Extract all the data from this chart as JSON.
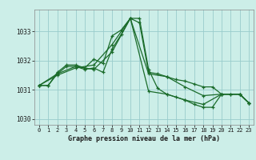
{
  "background_color": "#cceee8",
  "grid_color": "#99cccc",
  "line_color": "#1a6b2a",
  "marker": "+",
  "xlabel": "Graphe pression niveau de la mer (hPa)",
  "ylim": [
    1029.8,
    1033.75
  ],
  "xlim": [
    -0.5,
    23.5
  ],
  "yticks": [
    1030,
    1031,
    1032,
    1033
  ],
  "xticks": [
    0,
    1,
    2,
    3,
    4,
    5,
    6,
    7,
    8,
    9,
    10,
    11,
    12,
    13,
    14,
    15,
    16,
    17,
    18,
    19,
    20,
    21,
    22,
    23
  ],
  "series": [
    {
      "x": [
        0,
        1,
        2,
        3,
        4,
        5,
        6,
        7,
        8,
        9,
        10,
        11,
        12,
        13,
        14,
        15,
        16,
        17,
        18,
        19,
        20,
        21,
        22,
        23
      ],
      "y": [
        1031.15,
        1031.15,
        1031.6,
        1031.85,
        1031.85,
        1031.75,
        1032.05,
        1031.9,
        1032.85,
        1033.05,
        1033.45,
        1033.3,
        1031.6,
        1031.55,
        1031.45,
        1031.35,
        1031.3,
        1031.2,
        1031.1,
        1031.1,
        1030.85,
        1030.85,
        1030.85,
        1030.55
      ]
    },
    {
      "x": [
        0,
        1,
        2,
        3,
        4,
        5,
        6,
        7,
        8,
        9,
        10,
        11,
        12,
        13,
        14,
        15,
        16,
        17,
        18,
        19,
        20,
        21,
        22,
        23
      ],
      "y": [
        1031.15,
        1031.15,
        1031.55,
        1031.8,
        1031.8,
        1031.7,
        1031.75,
        1031.6,
        1032.4,
        1032.9,
        1033.45,
        1033.45,
        1031.7,
        1031.05,
        1030.85,
        1030.75,
        1030.65,
        1030.5,
        1030.4,
        1030.4,
        1030.85,
        1030.85,
        1030.85,
        1030.55
      ]
    },
    {
      "x": [
        0,
        2,
        4,
        6,
        8,
        10,
        12,
        14,
        16,
        18,
        20,
        22,
        23
      ],
      "y": [
        1031.15,
        1031.5,
        1031.75,
        1031.85,
        1032.55,
        1033.45,
        1031.55,
        1031.45,
        1031.1,
        1030.8,
        1030.85,
        1030.85,
        1030.55
      ]
    },
    {
      "x": [
        0,
        2,
        4,
        6,
        8,
        10,
        12,
        14,
        16,
        18,
        20,
        22,
        23
      ],
      "y": [
        1031.15,
        1031.55,
        1031.8,
        1031.7,
        1032.3,
        1033.45,
        1030.95,
        1030.85,
        1030.65,
        1030.5,
        1030.85,
        1030.85,
        1030.55
      ]
    }
  ]
}
